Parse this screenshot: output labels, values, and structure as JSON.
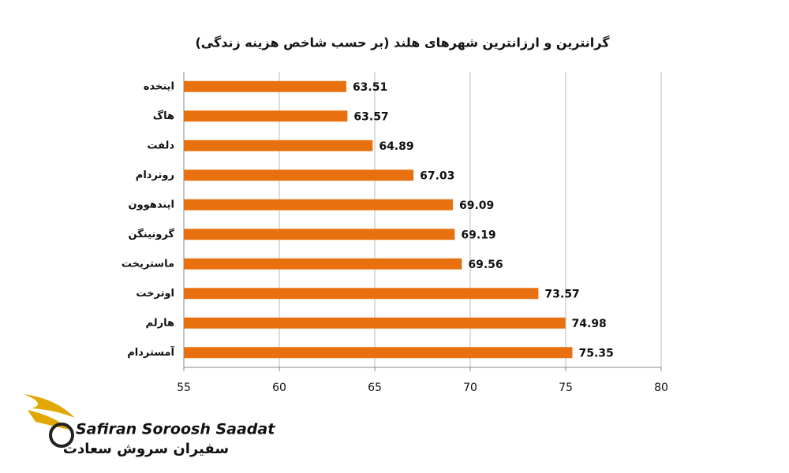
{
  "chart_data": {
    "type": "bar",
    "orientation": "horizontal",
    "title": "گرانترین و ارزانترین شهرهای هلند (بر حسب شاخص هزینه زندگی)",
    "categories": [
      "اینخده",
      "هاگ",
      "دلفت",
      "روتردام",
      "ایندهوون",
      "گرونینگن",
      "ماستریخت",
      "اوترخت",
      "هارلم",
      "آمستردام"
    ],
    "values": [
      63.51,
      63.57,
      64.89,
      67.03,
      69.09,
      69.19,
      69.56,
      73.57,
      74.98,
      75.35
    ],
    "color": "#e8700f",
    "xlim": [
      55,
      80
    ],
    "xticks": [
      55,
      60,
      65,
      70,
      75,
      80
    ],
    "grid": true
  },
  "logo": {
    "name": "Safiran Soroosh Saadat",
    "name_fa": "سفیران سروش سعادت"
  }
}
